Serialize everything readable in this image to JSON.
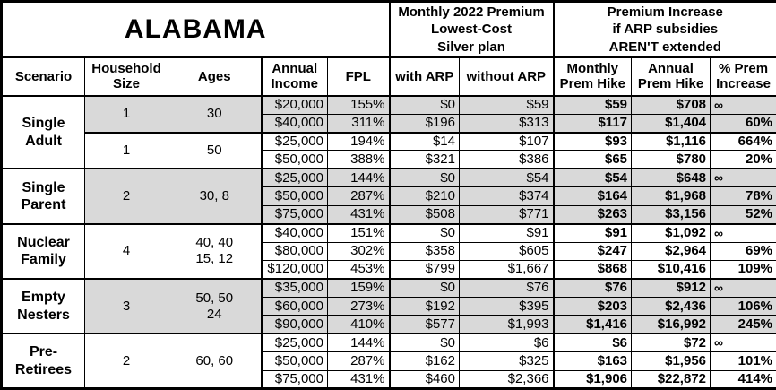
{
  "title": "ALABAMA",
  "header_groups": {
    "monthly_premium": "Monthly 2022 Premium\nLowest-Cost\nSilver plan",
    "premium_increase": "Premium Increase\nif ARP subsidies\nAREN'T extended"
  },
  "columns": [
    "Scenario",
    "Household\nSize",
    "Ages",
    "Annual\nIncome",
    "FPL",
    "with ARP",
    "without ARP",
    "Monthly\nPrem Hike",
    "Annual\nPrem Hike",
    "% Prem\nIncrease"
  ],
  "colors": {
    "shaded_row": "#d9d9d9",
    "border": "#000000",
    "background": "#ffffff"
  },
  "groups": [
    {
      "scenario": "Single\nAdult",
      "subgroups": [
        {
          "household_size": "1",
          "ages": "30",
          "shaded": true,
          "rows": [
            [
              "$20,000",
              "155%",
              "$0",
              "$59",
              "$59",
              "$708",
              "∞"
            ],
            [
              "$40,000",
              "311%",
              "$196",
              "$313",
              "$117",
              "$1,404",
              "60%"
            ]
          ]
        },
        {
          "household_size": "1",
          "ages": "50",
          "shaded": false,
          "rows": [
            [
              "$25,000",
              "194%",
              "$14",
              "$107",
              "$93",
              "$1,116",
              "664%"
            ],
            [
              "$50,000",
              "388%",
              "$321",
              "$386",
              "$65",
              "$780",
              "20%"
            ]
          ]
        }
      ]
    },
    {
      "scenario": "Single\nParent",
      "subgroups": [
        {
          "household_size": "2",
          "ages": "30, 8",
          "shaded": true,
          "rows": [
            [
              "$25,000",
              "144%",
              "$0",
              "$54",
              "$54",
              "$648",
              "∞"
            ],
            [
              "$50,000",
              "287%",
              "$210",
              "$374",
              "$164",
              "$1,968",
              "78%"
            ],
            [
              "$75,000",
              "431%",
              "$508",
              "$771",
              "$263",
              "$3,156",
              "52%"
            ]
          ]
        }
      ]
    },
    {
      "scenario": "Nuclear\nFamily",
      "subgroups": [
        {
          "household_size": "4",
          "ages": "40, 40\n15, 12",
          "shaded": false,
          "rows": [
            [
              "$40,000",
              "151%",
              "$0",
              "$91",
              "$91",
              "$1,092",
              "∞"
            ],
            [
              "$80,000",
              "302%",
              "$358",
              "$605",
              "$247",
              "$2,964",
              "69%"
            ],
            [
              "$120,000",
              "453%",
              "$799",
              "$1,667",
              "$868",
              "$10,416",
              "109%"
            ]
          ]
        }
      ]
    },
    {
      "scenario": "Empty\nNesters",
      "subgroups": [
        {
          "household_size": "3",
          "ages": "50, 50\n24",
          "shaded": true,
          "rows": [
            [
              "$35,000",
              "159%",
              "$0",
              "$76",
              "$76",
              "$912",
              "∞"
            ],
            [
              "$60,000",
              "273%",
              "$192",
              "$395",
              "$203",
              "$2,436",
              "106%"
            ],
            [
              "$90,000",
              "410%",
              "$577",
              "$1,993",
              "$1,416",
              "$16,992",
              "245%"
            ]
          ]
        }
      ]
    },
    {
      "scenario": "Pre-\nRetirees",
      "subgroups": [
        {
          "household_size": "2",
          "ages": "60, 60",
          "shaded": false,
          "rows": [
            [
              "$25,000",
              "144%",
              "$0",
              "$6",
              "$6",
              "$72",
              "∞"
            ],
            [
              "$50,000",
              "287%",
              "$162",
              "$325",
              "$163",
              "$1,956",
              "101%"
            ],
            [
              "$75,000",
              "431%",
              "$460",
              "$2,366",
              "$1,906",
              "$22,872",
              "414%"
            ]
          ]
        }
      ]
    }
  ]
}
